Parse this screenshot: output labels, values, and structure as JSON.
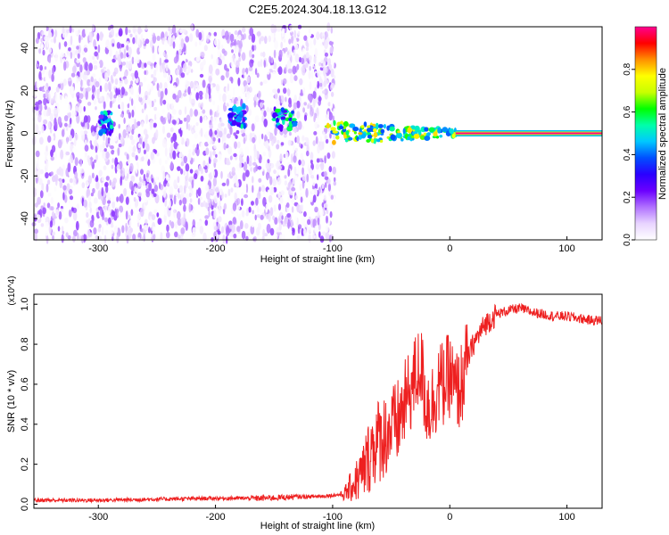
{
  "figure": {
    "title": "C2E5.2024.304.18.13.G12"
  },
  "colorbar": {
    "label": "Normalized spectral amplitude",
    "ticks": [
      "0.0",
      "0.2",
      "0.4",
      "0.6",
      "0.8"
    ],
    "tick_values": [
      0.0,
      0.2,
      0.4,
      0.6,
      0.8
    ],
    "range": [
      0,
      1
    ],
    "colormap": [
      "#ffffff",
      "#e8d4ff",
      "#b070ff",
      "#6b00ff",
      "#2a00ff",
      "#0050ff",
      "#00c8ff",
      "#00ffaa",
      "#00ff00",
      "#c8ff00",
      "#ffff00",
      "#ff9000",
      "#ff0000",
      "#ff0090"
    ]
  },
  "chart_data": [
    {
      "type": "heatmap",
      "title": "C2E5.2024.304.18.13.G12",
      "xlabel": "Height of straight line (km)",
      "ylabel": "Frequency (Hz)",
      "xlim": [
        -355,
        130
      ],
      "ylim": [
        -50,
        50
      ],
      "xticks": [
        -300,
        -200,
        -100,
        0,
        100
      ],
      "xtick_labels": [
        "-300",
        "-200",
        "-100",
        "0",
        "100"
      ],
      "yticks": [
        -40,
        -20,
        0,
        20,
        40
      ],
      "ytick_labels": [
        "-40",
        "-20",
        "0",
        "20",
        "40"
      ],
      "grid": false,
      "regions": [
        {
          "desc": "noise",
          "x": [
            -355,
            -98
          ],
          "freq": [
            -50,
            50
          ],
          "amplitude": 0.1
        },
        {
          "desc": "signal blob",
          "x": [
            -298,
            -288
          ],
          "freq": 5,
          "amplitude": 0.5
        },
        {
          "desc": "signal blob",
          "x": [
            -188,
            -175
          ],
          "freq": 8,
          "amplitude": 0.5
        },
        {
          "desc": "signal blob",
          "x": [
            -152,
            -132
          ],
          "freq": 7,
          "amplitude": 0.55
        },
        {
          "desc": "signal trace",
          "x": [
            -108,
            5
          ],
          "freq": 0,
          "amplitude": 0.75
        },
        {
          "desc": "carrier",
          "x": [
            5,
            130
          ],
          "freq": 0,
          "amplitude": 1.0
        }
      ]
    },
    {
      "type": "line",
      "xlabel": "Height of straight line (km)",
      "ylabel": "SNR (10 * v/v)",
      "y_multiplier": "(x10^4)",
      "xlim": [
        -355,
        130
      ],
      "ylim": [
        -0.02,
        1.05
      ],
      "xticks": [
        -300,
        -200,
        -100,
        0,
        100
      ],
      "xtick_labels": [
        "-300",
        "-200",
        "-100",
        "0",
        "100"
      ],
      "yticks": [
        0.0,
        0.2,
        0.4,
        0.6,
        0.8,
        1.0
      ],
      "ytick_labels": [
        "0.0",
        "0.2",
        "0.4",
        "0.6",
        "0.8",
        "1.0"
      ],
      "grid": false,
      "series": [
        {
          "color": "#ee2020",
          "x": [
            -355,
            -300,
            -250,
            -200,
            -160,
            -140,
            -110,
            -90,
            -75,
            -65,
            -55,
            -45,
            -35,
            -25,
            -20,
            -15,
            -10,
            -5,
            0,
            5,
            10,
            15,
            20,
            25,
            30,
            40,
            50,
            60,
            70,
            80,
            90,
            100,
            110,
            120,
            130
          ],
          "y": [
            0.02,
            0.02,
            0.025,
            0.03,
            0.03,
            0.035,
            0.04,
            0.05,
            0.15,
            0.3,
            0.35,
            0.4,
            0.55,
            0.7,
            0.5,
            0.5,
            0.6,
            0.6,
            0.65,
            0.55,
            0.6,
            0.72,
            0.8,
            0.85,
            0.9,
            0.95,
            0.97,
            0.98,
            0.96,
            0.95,
            0.94,
            0.94,
            0.93,
            0.92,
            0.92
          ]
        }
      ]
    }
  ]
}
